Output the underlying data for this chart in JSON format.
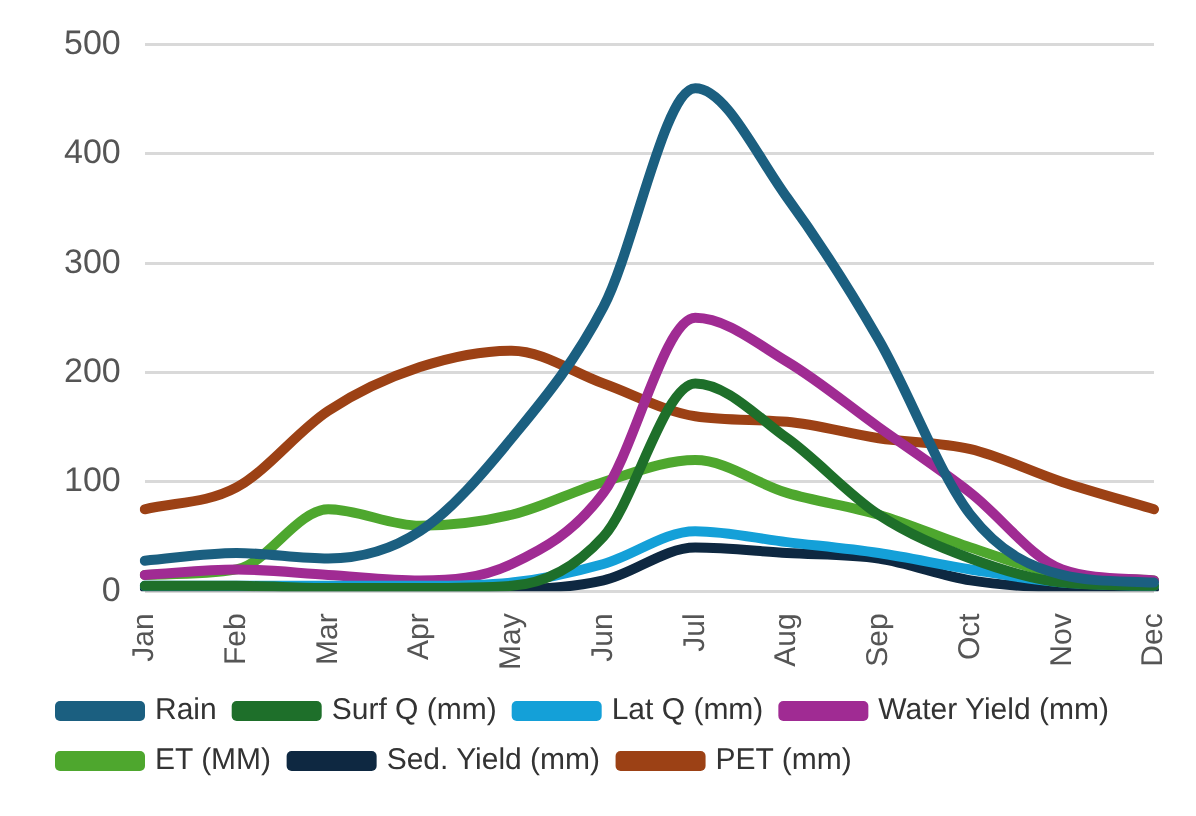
{
  "chart_data": {
    "type": "line",
    "categories": [
      "Jan",
      "Feb",
      "Mar",
      "Apr",
      "May",
      "Jun",
      "Jul",
      "Aug",
      "Sep",
      "Oct",
      "Nov",
      "Dec"
    ],
    "series": [
      {
        "name": "Rain",
        "color": "#1b5f80",
        "values": [
          28,
          35,
          30,
          55,
          140,
          260,
          460,
          360,
          230,
          70,
          15,
          8
        ]
      },
      {
        "name": "Surf Q (mm)",
        "color": "#1e6f2a",
        "values": [
          5,
          5,
          3,
          3,
          5,
          50,
          190,
          140,
          70,
          30,
          8,
          5
        ]
      },
      {
        "name": "Lat Q (mm)",
        "color": "#14a0d8",
        "values": [
          5,
          5,
          5,
          5,
          8,
          25,
          55,
          45,
          35,
          20,
          8,
          5
        ]
      },
      {
        "name": "Water Yield (mm)",
        "color": "#a02b93",
        "values": [
          15,
          20,
          15,
          10,
          25,
          90,
          250,
          210,
          150,
          90,
          20,
          10
        ]
      },
      {
        "name": "ET (MM)",
        "color": "#4ea72e",
        "values": [
          15,
          20,
          75,
          60,
          70,
          100,
          120,
          90,
          70,
          40,
          15,
          10
        ]
      },
      {
        "name": "Sed. Yield (mm)",
        "color": "#0e2841",
        "values": [
          3,
          3,
          2,
          2,
          2,
          10,
          40,
          35,
          30,
          10,
          3,
          2
        ]
      },
      {
        "name": "PET (mm)",
        "color": "#9c4115",
        "values": [
          75,
          95,
          165,
          205,
          220,
          190,
          160,
          155,
          140,
          130,
          100,
          75
        ]
      }
    ],
    "ylim": [
      0,
      500
    ],
    "yticks": [
      0,
      100,
      200,
      300,
      400,
      500
    ],
    "grid": "y",
    "legend": "bottom",
    "marker": "none",
    "line_style": "solid"
  }
}
